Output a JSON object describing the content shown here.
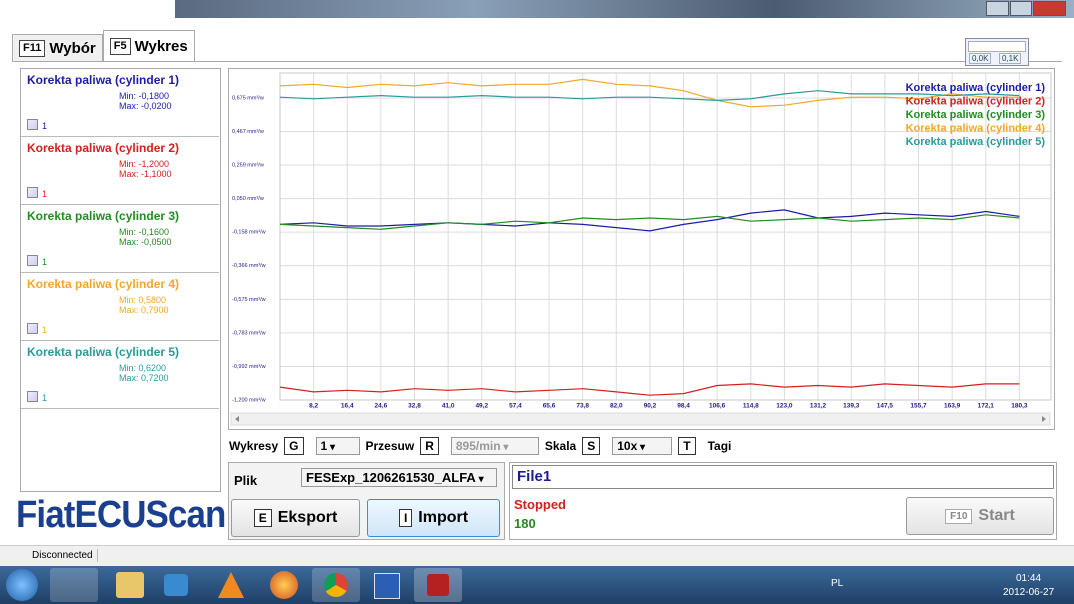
{
  "tabs": [
    {
      "key": "F11",
      "label": "Wybór"
    },
    {
      "key": "F5",
      "label": "Wykres"
    }
  ],
  "meter": [
    "0,0K",
    "0,1K"
  ],
  "series_panel": [
    {
      "name": "Korekta paliwa (cylinder 1)",
      "min": "Min: -0,1800",
      "max": "Max: -0,0200",
      "check": "1"
    },
    {
      "name": "Korekta paliwa (cylinder 2)",
      "min": "Min: -1,2000",
      "max": "Max: -1,1000",
      "check": "1"
    },
    {
      "name": "Korekta paliwa (cylinder 3)",
      "min": "Min: -0,1600",
      "max": "Max: -0,0500",
      "check": "1"
    },
    {
      "name": "Korekta paliwa (cylinder 4)",
      "min": "Min: 0,5800",
      "max": "Max: 0,7900",
      "check": "1"
    },
    {
      "name": "Korekta paliwa (cylinder 5)",
      "min": "Min: 0,6200",
      "max": "Max: 0,7200",
      "check": "1"
    }
  ],
  "chart_data": {
    "type": "line",
    "grid": true,
    "legend": "top-right",
    "x": [
      0,
      8.2,
      16.4,
      24.6,
      32.8,
      41.0,
      49.2,
      57.4,
      65.6,
      73.8,
      82.0,
      90.2,
      98.4,
      106.6,
      114.8,
      123.0,
      131.2,
      139.3,
      147.5,
      155.7,
      163.9,
      172.1,
      180.3
    ],
    "xlim": [
      0,
      188
    ],
    "xticks": [
      {
        "value": 8.2,
        "label": "8,2"
      },
      {
        "value": 16.4,
        "label": "16,4"
      },
      {
        "value": 24.6,
        "label": "24,6"
      },
      {
        "value": 32.8,
        "label": "32,8"
      },
      {
        "value": 41.0,
        "label": "41,0"
      },
      {
        "value": 49.2,
        "label": "49,2"
      },
      {
        "value": 57.4,
        "label": "57,4"
      },
      {
        "value": 65.6,
        "label": "65,6"
      },
      {
        "value": 73.8,
        "label": "73,8"
      },
      {
        "value": 82.0,
        "label": "82,0"
      },
      {
        "value": 90.2,
        "label": "90,2"
      },
      {
        "value": 98.4,
        "label": "98,4"
      },
      {
        "value": 106.6,
        "label": "106,6"
      },
      {
        "value": 114.8,
        "label": "114,8"
      },
      {
        "value": 123.0,
        "label": "123,0"
      },
      {
        "value": 131.2,
        "label": "131,2"
      },
      {
        "value": 139.3,
        "label": "139,3"
      },
      {
        "value": 147.5,
        "label": "147,5"
      },
      {
        "value": 155.7,
        "label": "155,7"
      },
      {
        "value": 163.9,
        "label": "163,9"
      },
      {
        "value": 172.1,
        "label": "172,1"
      },
      {
        "value": 180.3,
        "label": "180,3"
      }
    ],
    "ylim": [
      -1.2,
      0.83
    ],
    "yticks": [
      {
        "value": 0.675,
        "label": "0,675 mm³/w"
      },
      {
        "value": 0.467,
        "label": "0,467 mm³/w"
      },
      {
        "value": 0.259,
        "label": "0,259 mm³/w"
      },
      {
        "value": 0.05,
        "label": "0,050 mm³/w"
      },
      {
        "value": -0.158,
        "label": "-0,158 mm³/w"
      },
      {
        "value": -0.366,
        "label": "-0,366 mm³/w"
      },
      {
        "value": -0.575,
        "label": "-0,575 mm³/w"
      },
      {
        "value": -0.783,
        "label": "-0,783 mm³/w"
      },
      {
        "value": -0.992,
        "label": "-0,992 mm³/w"
      },
      {
        "value": -1.2,
        "label": "-1,200 mm³/w"
      }
    ],
    "series": [
      {
        "name": "Korekta paliwa (cylinder 1)",
        "color": "#1c1ca8",
        "values": [
          -0.11,
          -0.1,
          -0.12,
          -0.12,
          -0.11,
          -0.1,
          -0.11,
          -0.12,
          -0.1,
          -0.11,
          -0.13,
          -0.15,
          -0.11,
          -0.08,
          -0.04,
          -0.02,
          -0.07,
          -0.06,
          -0.04,
          -0.05,
          -0.06,
          -0.03,
          -0.06
        ]
      },
      {
        "name": "Korekta paliwa (cylinder 2)",
        "color": "#d42020",
        "values": [
          -1.12,
          -1.15,
          -1.14,
          -1.15,
          -1.13,
          -1.14,
          -1.13,
          -1.15,
          -1.14,
          -1.13,
          -1.15,
          -1.17,
          -1.16,
          -1.11,
          -1.1,
          -1.12,
          -1.11,
          -1.12,
          -1.1,
          -1.11,
          -1.12,
          -1.1,
          -1.1
        ]
      },
      {
        "name": "Korekta paliwa (cylinder 3)",
        "color": "#228b22",
        "values": [
          -0.11,
          -0.12,
          -0.13,
          -0.14,
          -0.12,
          -0.1,
          -0.11,
          -0.09,
          -0.1,
          -0.07,
          -0.08,
          -0.07,
          -0.08,
          -0.06,
          -0.09,
          -0.08,
          -0.07,
          -0.09,
          -0.08,
          -0.07,
          -0.08,
          -0.05,
          -0.07
        ]
      },
      {
        "name": "Korekta paliwa (cylinder 4)",
        "color": "#f0a828",
        "values": [
          0.75,
          0.76,
          0.74,
          0.76,
          0.75,
          0.77,
          0.75,
          0.76,
          0.76,
          0.79,
          0.76,
          0.75,
          0.72,
          0.66,
          0.62,
          0.63,
          0.66,
          0.68,
          0.68,
          0.67,
          0.7,
          0.68,
          0.68
        ]
      },
      {
        "name": "Korekta paliwa (cylinder 5)",
        "color": "#2a9a9a",
        "values": [
          0.68,
          0.67,
          0.68,
          0.69,
          0.68,
          0.68,
          0.69,
          0.68,
          0.68,
          0.67,
          0.68,
          0.68,
          0.67,
          0.66,
          0.67,
          0.7,
          0.72,
          0.7,
          0.7,
          0.7,
          0.69,
          0.7,
          0.69
        ]
      }
    ]
  },
  "controls": {
    "charts_label": "Wykresy",
    "charts_key": "G",
    "charts_value": "1",
    "shift_label": "Przesuw",
    "shift_key": "R",
    "shift_value": "895/min",
    "scale_label": "Skala",
    "scale_key": "S",
    "scale_value": "10x",
    "tags_key": "T",
    "tags_label": "Tagi"
  },
  "file_panel": {
    "file_label": "Plik",
    "file_value": "FESExp_1206261530_ALFA",
    "export_key": "E",
    "export_label": "Eksport",
    "import_key": "I",
    "import_label": "Import",
    "name": "File1",
    "state": "Stopped",
    "count": "180",
    "start_key": "F10",
    "start_label": "Start"
  },
  "logo": "FiatECUScan",
  "status": "Disconnected",
  "taskbar": {
    "lang": "PL",
    "time": "01:44",
    "date": "2012-06-27"
  }
}
